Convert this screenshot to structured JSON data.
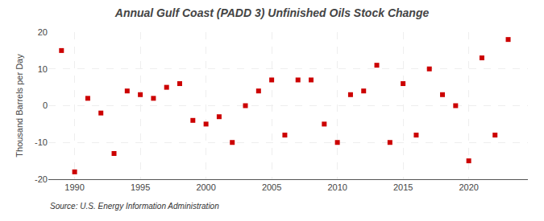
{
  "chart_data": {
    "type": "scatter",
    "title": "Annual Gulf Coast (PADD 3) Unfinished Oils Stock Change",
    "ylabel": "Thousand Barrels per Day",
    "annotations": [
      "Source: U.S. Energy Information Administration"
    ],
    "x": [
      1989,
      1990,
      1991,
      1992,
      1993,
      1994,
      1995,
      1996,
      1997,
      1998,
      1999,
      2000,
      2001,
      2002,
      2003,
      2004,
      2005,
      2006,
      2007,
      2008,
      2009,
      2010,
      2011,
      2012,
      2013,
      2014,
      2015,
      2016,
      2017,
      2018,
      2019,
      2020,
      2021,
      2022,
      2023
    ],
    "values": [
      15,
      -18,
      2,
      -2,
      -13,
      4,
      3,
      2,
      5,
      6,
      -4,
      -5,
      -3,
      -10,
      0,
      4,
      7,
      -8,
      7,
      7,
      -5,
      -10,
      3,
      4,
      11,
      -10,
      6,
      -8,
      10,
      3,
      0,
      -15,
      13,
      -8,
      18
    ],
    "color": "#cc0000",
    "marker": "square",
    "xlim": [
      1988.0,
      2024.5
    ],
    "xticks": [
      1990,
      1995,
      2000,
      2005,
      2010,
      2015,
      2020
    ],
    "ylim": [
      -20,
      20
    ],
    "yticks": [
      -20,
      -10,
      0,
      10,
      20
    ],
    "grid": true
  }
}
